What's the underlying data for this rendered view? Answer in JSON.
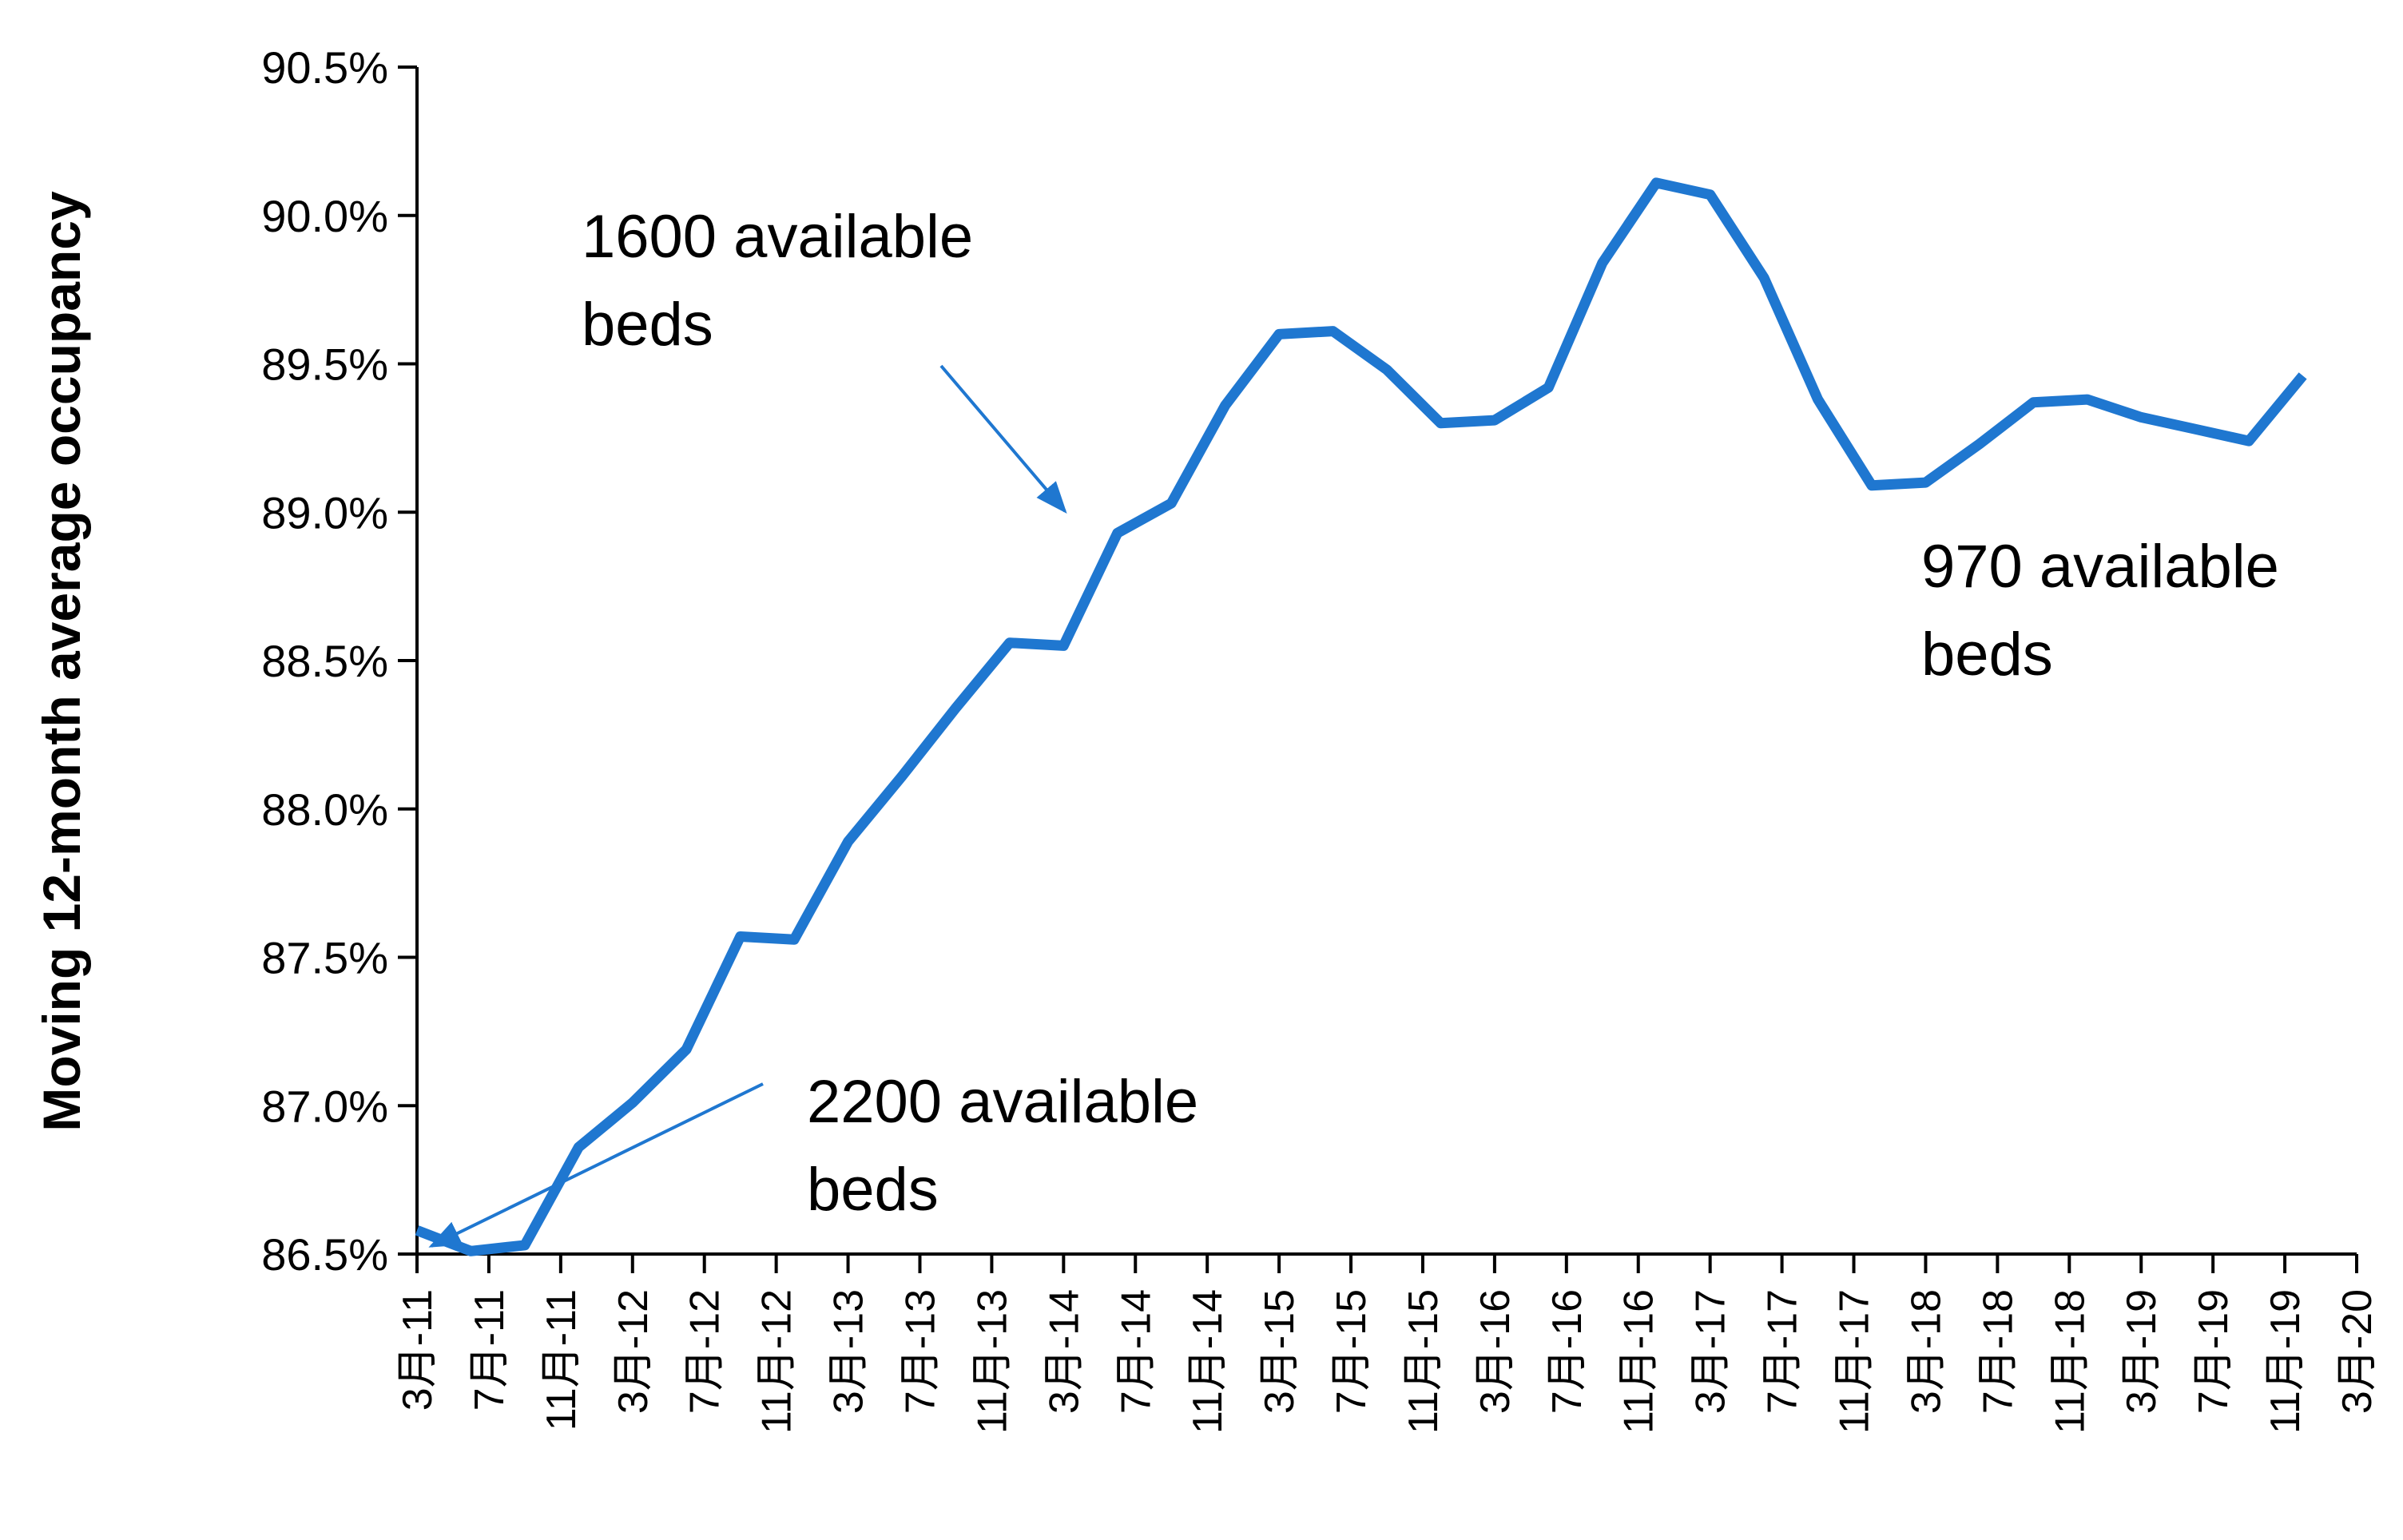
{
  "chart_data": {
    "type": "line",
    "ylabel": "Moving 12-month average occupancy",
    "xlabel": "",
    "ylim": [
      86.5,
      90.5
    ],
    "y_ticks": [
      "86.5%",
      "87.0%",
      "87.5%",
      "88.0%",
      "88.5%",
      "89.0%",
      "89.5%",
      "90.0%",
      "90.5%"
    ],
    "x_tick_labels": [
      "3月-11",
      "7月-11",
      "11月-11",
      "3月-12",
      "7月-12",
      "11月-12",
      "3月-13",
      "7月-13",
      "11月-13",
      "3月-14",
      "7月-14",
      "11月-14",
      "3月-15",
      "7月-15",
      "11月-15",
      "3月-16",
      "7月-16",
      "11月-16",
      "3月-17",
      "7月-17",
      "11月-17",
      "3月-18",
      "7月-18",
      "11月-18",
      "3月-19",
      "7月-19",
      "11月-19",
      "3月-20"
    ],
    "x_range": [
      "2011-03",
      "2020-03"
    ],
    "series": [
      {
        "x": [
          "2011-03",
          "2011-06",
          "2011-09",
          "2011-12",
          "2012-03",
          "2012-06",
          "2012-09",
          "2012-12",
          "2013-03",
          "2013-06",
          "2013-09",
          "2013-12",
          "2014-03",
          "2014-06",
          "2014-09",
          "2014-12",
          "2015-03",
          "2015-06",
          "2015-09",
          "2015-12",
          "2016-03",
          "2016-06",
          "2016-09",
          "2016-12",
          "2017-03",
          "2017-06",
          "2017-09",
          "2017-12",
          "2018-03",
          "2018-06",
          "2018-09",
          "2018-12",
          "2019-03",
          "2019-06",
          "2019-09",
          "2019-12"
        ],
        "values": [
          86.58,
          86.51,
          86.53,
          86.86,
          87.01,
          87.19,
          87.57,
          87.56,
          87.89,
          88.11,
          88.34,
          88.56,
          88.55,
          88.93,
          89.03,
          89.36,
          89.6,
          89.61,
          89.48,
          89.3,
          89.31,
          89.42,
          89.84,
          90.11,
          90.07,
          89.79,
          89.38,
          89.09,
          89.1,
          89.23,
          89.37,
          89.38,
          89.32,
          89.28,
          89.24,
          89.46
        ]
      }
    ],
    "color": "#1f77d0",
    "grid": false,
    "legend": "none",
    "annotations": [
      {
        "text_lines": [
          "1600 available",
          "beds"
        ]
      },
      {
        "text_lines": [
          "2200 available",
          "beds"
        ]
      },
      {
        "text_lines": [
          "970 available",
          "beds"
        ]
      }
    ]
  }
}
